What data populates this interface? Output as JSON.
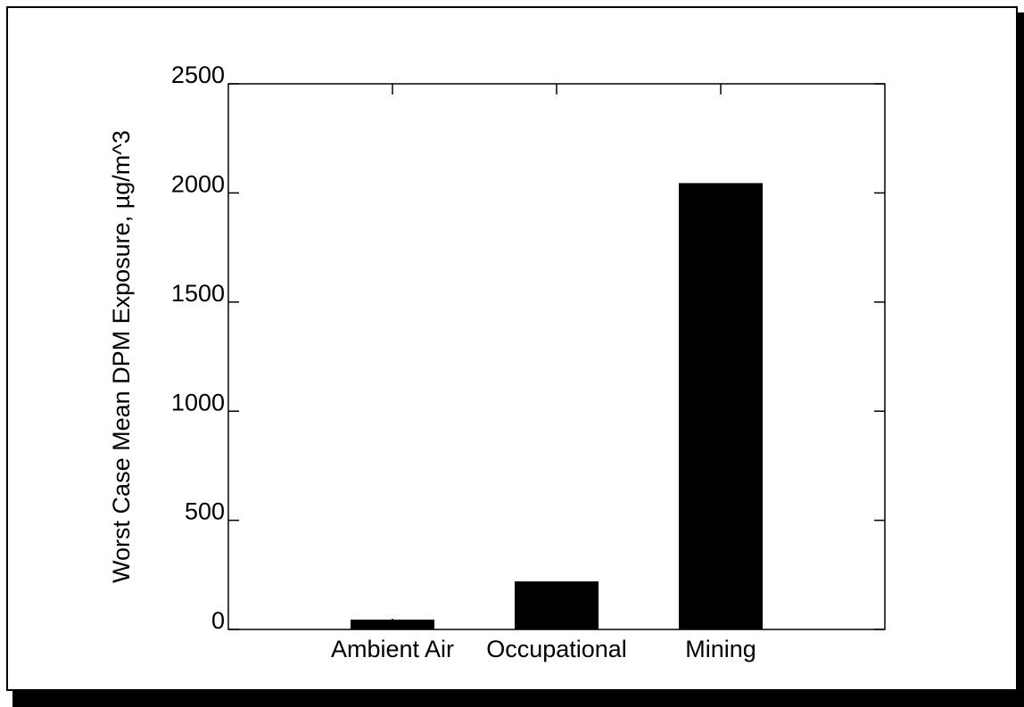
{
  "chart_data": {
    "type": "bar",
    "ylabel": "Worst Case Mean DPM Exposure, µg/m^3",
    "categories": [
      "Ambient Air",
      "Occupational",
      "Mining"
    ],
    "values": [
      45,
      220,
      2045
    ],
    "color": "#000000",
    "ylim": [
      0,
      2500
    ],
    "yticks": [
      0,
      500,
      1000,
      1500,
      2000,
      2500
    ]
  }
}
